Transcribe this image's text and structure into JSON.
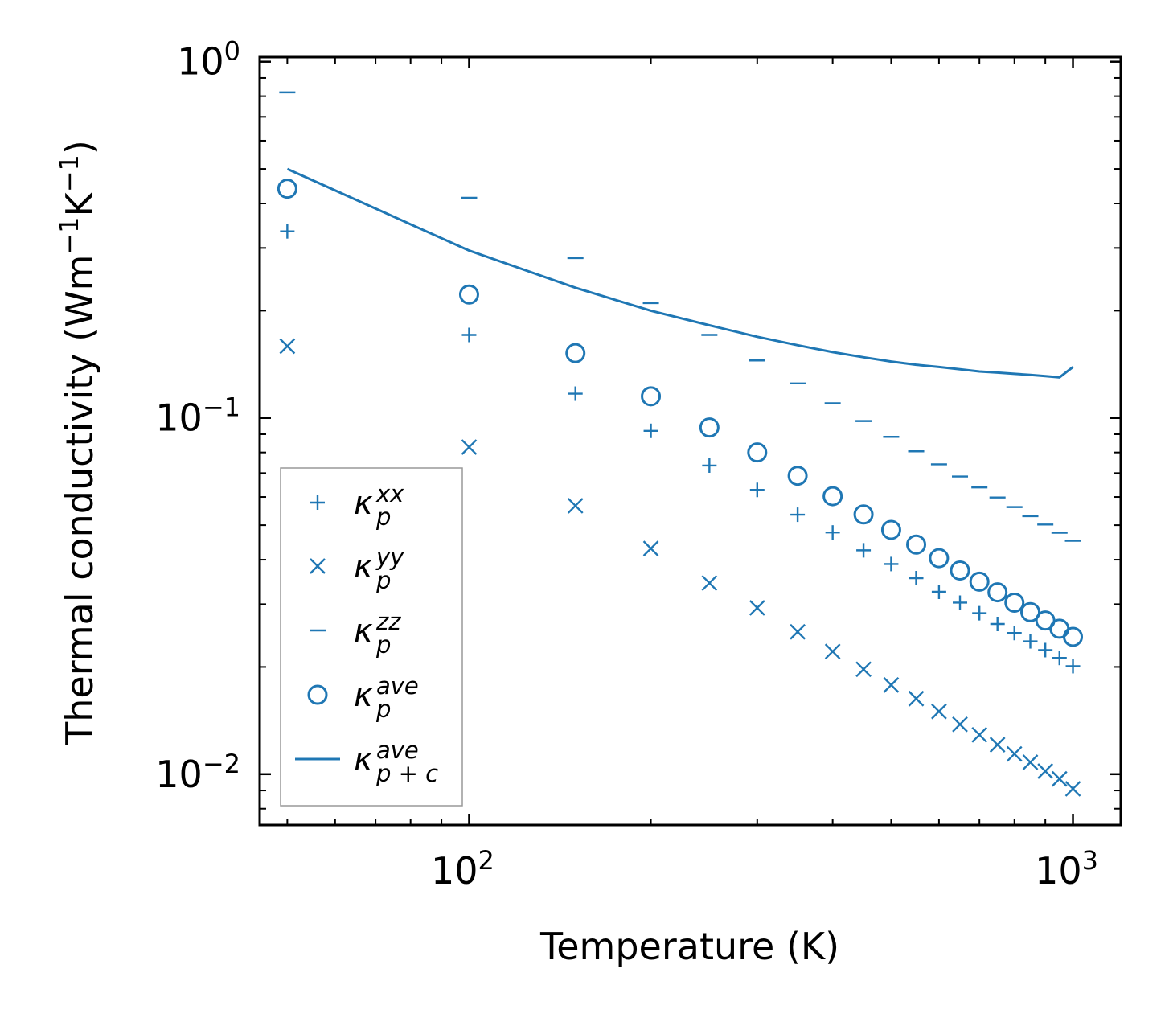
{
  "chart_data": {
    "type": "scatter",
    "xscale": "log",
    "yscale": "log",
    "xlabel": "Temperature (K)",
    "ylabel": {
      "prefix": "Thermal conductivity (Wm",
      "sup1": "−1",
      "mid": "K",
      "sup2": "−1",
      "suffix": ")"
    },
    "xlim": [
      45,
      1200
    ],
    "ylim": [
      0.0072,
      1.03
    ],
    "grid": false,
    "legend_position": "lower-left",
    "color": "#1f77b4",
    "xticks": [
      {
        "base": "10",
        "exp": "2",
        "value": 100
      },
      {
        "base": "10",
        "exp": "3",
        "value": 1000
      }
    ],
    "yticks": [
      {
        "base": "10",
        "exp": "−2",
        "value": 0.01
      },
      {
        "base": "10",
        "exp": "−1",
        "value": 0.1
      },
      {
        "base": "10",
        "exp": "0",
        "value": 1
      }
    ],
    "x": [
      50,
      100,
      150,
      200,
      250,
      300,
      350,
      400,
      450,
      500,
      550,
      600,
      650,
      700,
      750,
      800,
      850,
      900,
      950,
      1000
    ],
    "series": [
      {
        "name": "kappa_p_xx",
        "label": {
          "base": "κ",
          "sub": "p",
          "sup": "xx"
        },
        "marker": "plus",
        "values": [
          0.334,
          0.171,
          0.117,
          0.092,
          0.0735,
          0.0628,
          0.0535,
          0.0477,
          0.0425,
          0.0389,
          0.0355,
          0.0325,
          0.0303,
          0.0283,
          0.0264,
          0.0249,
          0.0236,
          0.0223,
          0.0212,
          0.0201
        ]
      },
      {
        "name": "kappa_p_yy",
        "label": {
          "base": "κ",
          "sub": "p",
          "sup": "yy"
        },
        "marker": "x",
        "values": [
          0.159,
          0.0828,
          0.0567,
          0.043,
          0.0344,
          0.0293,
          0.0251,
          0.0221,
          0.0197,
          0.0178,
          0.0163,
          0.015,
          0.0138,
          0.0129,
          0.0121,
          0.0114,
          0.0108,
          0.0102,
          0.0097,
          0.0091
        ]
      },
      {
        "name": "kappa_p_zz",
        "label": {
          "base": "κ",
          "sub": "p",
          "sup": "zz"
        },
        "marker": "hline",
        "values": [
          0.82,
          0.415,
          0.281,
          0.21,
          0.171,
          0.145,
          0.125,
          0.11,
          0.098,
          0.0885,
          0.0806,
          0.0741,
          0.0685,
          0.0638,
          0.0598,
          0.0562,
          0.053,
          0.0502,
          0.0476,
          0.0452
        ]
      },
      {
        "name": "kappa_p_ave",
        "label": {
          "base": "κ",
          "sub": "p",
          "sup": "ave"
        },
        "marker": "circle",
        "values": [
          0.44,
          0.222,
          0.152,
          0.115,
          0.094,
          0.08,
          0.0688,
          0.0603,
          0.0536,
          0.0485,
          0.0441,
          0.0404,
          0.0373,
          0.0347,
          0.0324,
          0.0303,
          0.0285,
          0.027,
          0.0256,
          0.0243
        ]
      },
      {
        "name": "kappa_pc_ave",
        "label": {
          "base": "κ",
          "sub": "p + c",
          "sup": "ave"
        },
        "marker": "line",
        "values": [
          0.5,
          0.295,
          0.232,
          0.2,
          0.182,
          0.169,
          0.16,
          0.153,
          0.148,
          0.144,
          0.141,
          0.139,
          0.137,
          0.135,
          0.134,
          0.133,
          0.132,
          0.131,
          0.13,
          0.139
        ]
      }
    ]
  }
}
